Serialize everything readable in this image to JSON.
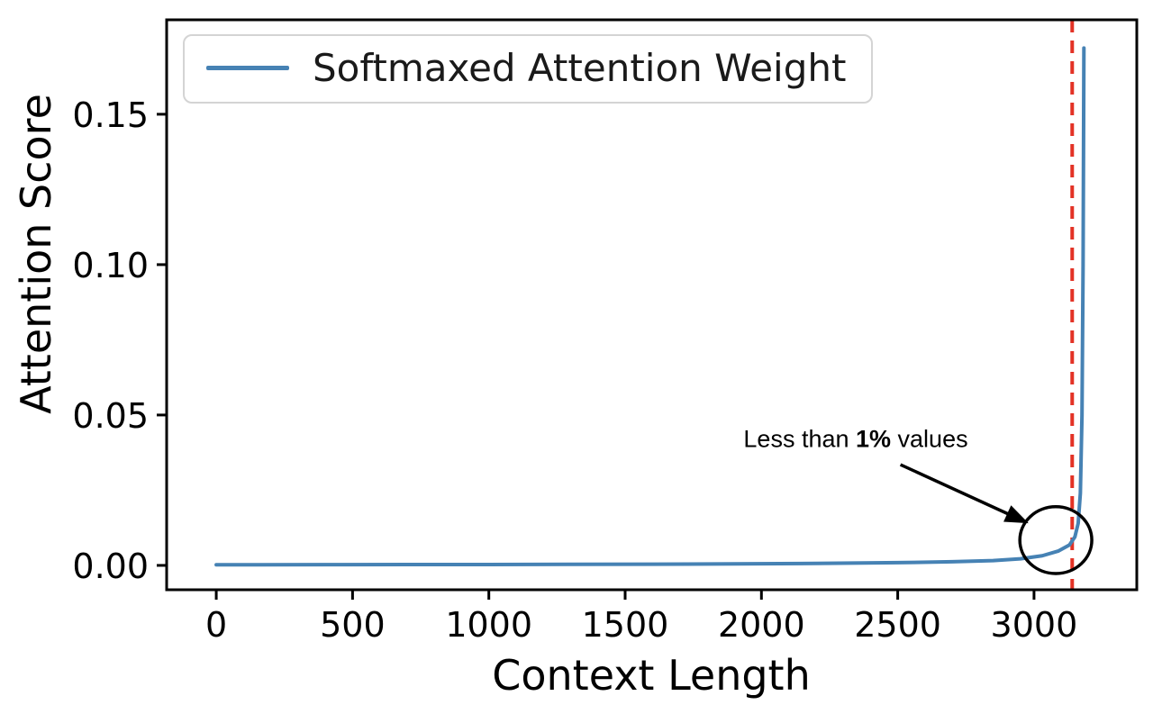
{
  "chart_data": {
    "type": "line",
    "title": "",
    "xlabel": "Context Length",
    "ylabel": "Attention Score",
    "xlim": [
      -182,
      3377
    ],
    "ylim": [
      -0.0081,
      0.1814
    ],
    "grid": false,
    "xticks": [
      {
        "v": 0,
        "label": "0"
      },
      {
        "v": 500,
        "label": "500"
      },
      {
        "v": 1000,
        "label": "1000"
      },
      {
        "v": 1500,
        "label": "1500"
      },
      {
        "v": 2000,
        "label": "2000"
      },
      {
        "v": 2500,
        "label": "2500"
      },
      {
        "v": 3000,
        "label": "3000"
      }
    ],
    "yticks": [
      {
        "v": 0.0,
        "label": "0.00"
      },
      {
        "v": 0.05,
        "label": "0.05"
      },
      {
        "v": 0.1,
        "label": "0.10"
      },
      {
        "v": 0.15,
        "label": "0.15"
      }
    ],
    "legend": {
      "position": "upper left",
      "label": "Softmaxed Attention Weight"
    },
    "series": [
      {
        "name": "Softmaxed Attention Weight",
        "color": "#4682b4",
        "width": 4,
        "x": [
          0,
          150,
          400,
          700,
          1000,
          1300,
          1600,
          1900,
          2200,
          2500,
          2700,
          2850,
          2950,
          3030,
          3090,
          3130,
          3150,
          3162,
          3170,
          3176,
          3180,
          3183
        ],
        "y": [
          0.0002,
          0.00021,
          0.00024,
          0.00027,
          0.0003,
          0.00035,
          0.0004,
          0.0005,
          0.00065,
          0.0009,
          0.0012,
          0.0016,
          0.0022,
          0.0032,
          0.0048,
          0.0068,
          0.0095,
          0.014,
          0.024,
          0.05,
          0.1,
          0.172
        ]
      }
    ],
    "vline": {
      "x": 3140,
      "color": "#e33225",
      "dash": [
        14,
        9
      ],
      "width": 4
    },
    "annotation": {
      "text_prefix": "Less than ",
      "text_bold": "1%",
      "text_suffix": " values",
      "text_anchor": {
        "x": 2346,
        "y": 0.042
      },
      "arrow": {
        "from": {
          "x": 2510,
          "y": 0.0335
        },
        "to": {
          "x": 2980,
          "y": 0.014
        },
        "color": "#000000"
      },
      "circle": {
        "cx": 3080,
        "cy": 0.0084,
        "rx": 132,
        "ry": 0.0111,
        "color": "#000000"
      }
    }
  }
}
